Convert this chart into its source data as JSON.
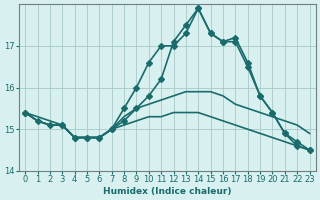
{
  "xlabel": "Humidex (Indice chaleur)",
  "ylabel": "",
  "bg_color": "#d8f0f0",
  "grid_color": "#a8c8c8",
  "line_color": "#1a6b6b",
  "xlim": [
    -0.5,
    23.5
  ],
  "ylim": [
    14.0,
    18.0
  ],
  "yticks": [
    14,
    15,
    16,
    17
  ],
  "xticks": [
    0,
    1,
    2,
    3,
    4,
    5,
    6,
    7,
    8,
    9,
    10,
    11,
    12,
    13,
    14,
    15,
    16,
    17,
    18,
    19,
    20,
    21,
    22,
    23
  ],
  "series": [
    {
      "x": [
        0,
        1,
        2,
        3,
        4,
        5,
        6,
        7,
        8,
        9,
        10,
        11,
        12,
        13,
        14,
        15,
        16,
        17,
        18,
        19,
        20,
        21,
        22,
        23
      ],
      "y": [
        15.4,
        15.2,
        15.1,
        15.1,
        14.8,
        14.8,
        14.8,
        15.0,
        15.5,
        16.0,
        16.6,
        17.0,
        17.0,
        17.3,
        17.9,
        17.3,
        17.1,
        17.1,
        16.5,
        15.8,
        15.4,
        14.9,
        14.7,
        14.5
      ],
      "marker": "D",
      "markersize": 3,
      "linewidth": 1.2
    },
    {
      "x": [
        0,
        1,
        2,
        3,
        4,
        5,
        6,
        7,
        8,
        9,
        10,
        11,
        12,
        13,
        14,
        15,
        16,
        17,
        18,
        19,
        20,
        21,
        22,
        23
      ],
      "y": [
        15.4,
        15.2,
        15.1,
        15.1,
        14.8,
        14.8,
        14.8,
        15.0,
        15.3,
        15.5,
        15.6,
        15.7,
        15.8,
        15.9,
        15.9,
        15.9,
        15.8,
        15.6,
        15.5,
        15.4,
        15.3,
        15.2,
        15.1,
        14.9
      ],
      "marker": null,
      "markersize": 0,
      "linewidth": 1.2
    },
    {
      "x": [
        0,
        1,
        2,
        3,
        4,
        5,
        6,
        7,
        8,
        9,
        10,
        11,
        12,
        13,
        14,
        15,
        16,
        17,
        18,
        19,
        20,
        21,
        22,
        23
      ],
      "y": [
        15.4,
        15.2,
        15.1,
        15.1,
        14.8,
        14.8,
        14.8,
        15.0,
        15.1,
        15.2,
        15.3,
        15.3,
        15.4,
        15.4,
        15.4,
        15.3,
        15.2,
        15.1,
        15.0,
        14.9,
        14.8,
        14.7,
        14.6,
        14.5
      ],
      "marker": null,
      "markersize": 0,
      "linewidth": 1.2
    },
    {
      "x": [
        0,
        3,
        4,
        5,
        6,
        7,
        8,
        9,
        10,
        11,
        12,
        13,
        14,
        15,
        16,
        17,
        18,
        19,
        20,
        21,
        22,
        23
      ],
      "y": [
        15.4,
        15.1,
        14.8,
        14.8,
        14.8,
        15.0,
        15.2,
        15.5,
        15.8,
        16.2,
        17.1,
        17.5,
        17.9,
        17.3,
        17.1,
        17.2,
        16.6,
        15.8,
        15.4,
        14.9,
        14.6,
        14.5
      ],
      "marker": "D",
      "markersize": 3,
      "linewidth": 1.2
    }
  ]
}
